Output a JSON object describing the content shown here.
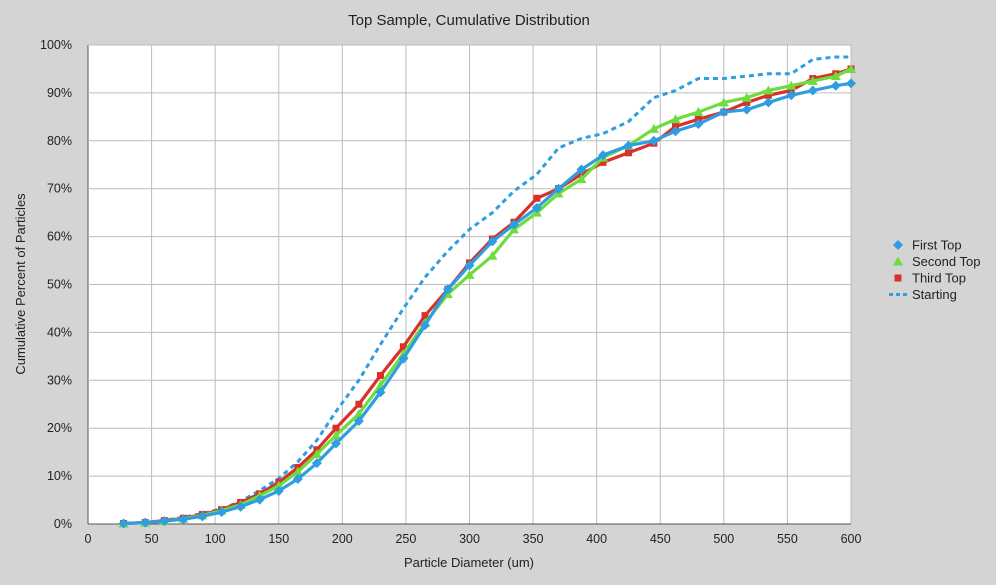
{
  "chart_data": {
    "type": "line",
    "title": "Top Sample, Cumulative Distribution",
    "xlabel": "Particle Diameter (um)",
    "ylabel": "Cumulative Percent of Particles",
    "xlim": [
      0,
      600
    ],
    "ylim": [
      0,
      100
    ],
    "x_ticks": [
      "0",
      "50",
      "100",
      "150",
      "200",
      "250",
      "300",
      "350",
      "400",
      "450",
      "500",
      "550",
      "600"
    ],
    "y_ticks": [
      "0%",
      "10%",
      "20%",
      "30%",
      "40%",
      "50%",
      "60%",
      "70%",
      "80%",
      "90%",
      "100%"
    ],
    "grid": true,
    "legend_position": "right",
    "series": [
      {
        "name": "First Top",
        "color": "#2f9ee0",
        "marker": "diamond",
        "points": [
          [
            28,
            0.1
          ],
          [
            45,
            0.3
          ],
          [
            60,
            0.6
          ],
          [
            75,
            1.0
          ],
          [
            90,
            1.6
          ],
          [
            105,
            2.5
          ],
          [
            120,
            3.6
          ],
          [
            135,
            5.1
          ],
          [
            150,
            6.9
          ],
          [
            165,
            9.4
          ],
          [
            180,
            12.7
          ],
          [
            195,
            16.8
          ],
          [
            213,
            21.5
          ],
          [
            230,
            27.5
          ],
          [
            248,
            34.5
          ],
          [
            265,
            41.5
          ],
          [
            283,
            49.0
          ],
          [
            300,
            54.0
          ],
          [
            318,
            59.0
          ],
          [
            335,
            62.5
          ],
          [
            353,
            66.0
          ],
          [
            370,
            70.0
          ],
          [
            388,
            74.0
          ],
          [
            405,
            77.0
          ],
          [
            425,
            79.0
          ],
          [
            445,
            80.0
          ],
          [
            462,
            82.0
          ],
          [
            480,
            83.5
          ],
          [
            500,
            86.0
          ],
          [
            518,
            86.5
          ],
          [
            535,
            88.0
          ],
          [
            553,
            89.5
          ],
          [
            570,
            90.5
          ],
          [
            588,
            91.5
          ],
          [
            600,
            92.0
          ]
        ]
      },
      {
        "name": "Second Top",
        "color": "#6edc3c",
        "marker": "triangle",
        "points": [
          [
            28,
            0.1
          ],
          [
            45,
            0.3
          ],
          [
            60,
            0.6
          ],
          [
            75,
            1.1
          ],
          [
            90,
            1.8
          ],
          [
            105,
            2.8
          ],
          [
            120,
            4.0
          ],
          [
            135,
            5.9
          ],
          [
            150,
            8.0
          ],
          [
            165,
            10.9
          ],
          [
            180,
            14.6
          ],
          [
            195,
            18.5
          ],
          [
            213,
            23.0
          ],
          [
            230,
            29.0
          ],
          [
            248,
            35.5
          ],
          [
            265,
            42.0
          ],
          [
            283,
            48.0
          ],
          [
            300,
            52.0
          ],
          [
            318,
            56.0
          ],
          [
            335,
            61.5
          ],
          [
            353,
            65.0
          ],
          [
            370,
            69.0
          ],
          [
            388,
            72.0
          ],
          [
            405,
            76.5
          ],
          [
            425,
            79.0
          ],
          [
            445,
            82.5
          ],
          [
            462,
            84.5
          ],
          [
            480,
            86.0
          ],
          [
            500,
            88.0
          ],
          [
            518,
            89.0
          ],
          [
            535,
            90.5
          ],
          [
            553,
            91.5
          ],
          [
            570,
            92.5
          ],
          [
            588,
            93.5
          ],
          [
            600,
            95.0
          ]
        ]
      },
      {
        "name": "Third Top",
        "color": "#d9302a",
        "marker": "square",
        "points": [
          [
            28,
            0.1
          ],
          [
            45,
            0.3
          ],
          [
            60,
            0.7
          ],
          [
            75,
            1.2
          ],
          [
            90,
            2.0
          ],
          [
            105,
            3.0
          ],
          [
            120,
            4.5
          ],
          [
            135,
            6.3
          ],
          [
            150,
            8.7
          ],
          [
            165,
            11.8
          ],
          [
            180,
            15.5
          ],
          [
            195,
            20.0
          ],
          [
            213,
            25.0
          ],
          [
            230,
            31.0
          ],
          [
            248,
            37.0
          ],
          [
            265,
            43.5
          ],
          [
            283,
            49.0
          ],
          [
            300,
            54.5
          ],
          [
            318,
            59.5
          ],
          [
            335,
            63.0
          ],
          [
            353,
            68.0
          ],
          [
            370,
            70.0
          ],
          [
            388,
            73.0
          ],
          [
            405,
            75.5
          ],
          [
            425,
            77.5
          ],
          [
            445,
            79.5
          ],
          [
            462,
            83.0
          ],
          [
            480,
            84.5
          ],
          [
            500,
            86.0
          ],
          [
            518,
            88.0
          ],
          [
            535,
            89.5
          ],
          [
            553,
            90.5
          ],
          [
            570,
            93.0
          ],
          [
            588,
            94.0
          ],
          [
            600,
            95.0
          ]
        ]
      },
      {
        "name": "Starting",
        "color": "#2f9ee0",
        "marker": "none",
        "dashed": true,
        "points": [
          [
            28,
            0.1
          ],
          [
            45,
            0.3
          ],
          [
            60,
            0.8
          ],
          [
            75,
            1.4
          ],
          [
            90,
            2.2
          ],
          [
            105,
            3.2
          ],
          [
            120,
            4.7
          ],
          [
            135,
            7.0
          ],
          [
            150,
            9.5
          ],
          [
            165,
            13.0
          ],
          [
            180,
            17.5
          ],
          [
            195,
            23.5
          ],
          [
            213,
            30.0
          ],
          [
            230,
            37.5
          ],
          [
            248,
            45.0
          ],
          [
            265,
            51.5
          ],
          [
            283,
            57.0
          ],
          [
            300,
            61.5
          ],
          [
            318,
            65.0
          ],
          [
            335,
            69.5
          ],
          [
            353,
            73.0
          ],
          [
            370,
            78.5
          ],
          [
            388,
            80.5
          ],
          [
            405,
            81.5
          ],
          [
            425,
            84.0
          ],
          [
            445,
            89.0
          ],
          [
            462,
            90.5
          ],
          [
            480,
            93.0
          ],
          [
            500,
            93.0
          ],
          [
            518,
            93.5
          ],
          [
            535,
            94.0
          ],
          [
            553,
            94.0
          ],
          [
            570,
            97.0
          ],
          [
            588,
            97.5
          ],
          [
            600,
            97.5
          ]
        ]
      }
    ]
  }
}
